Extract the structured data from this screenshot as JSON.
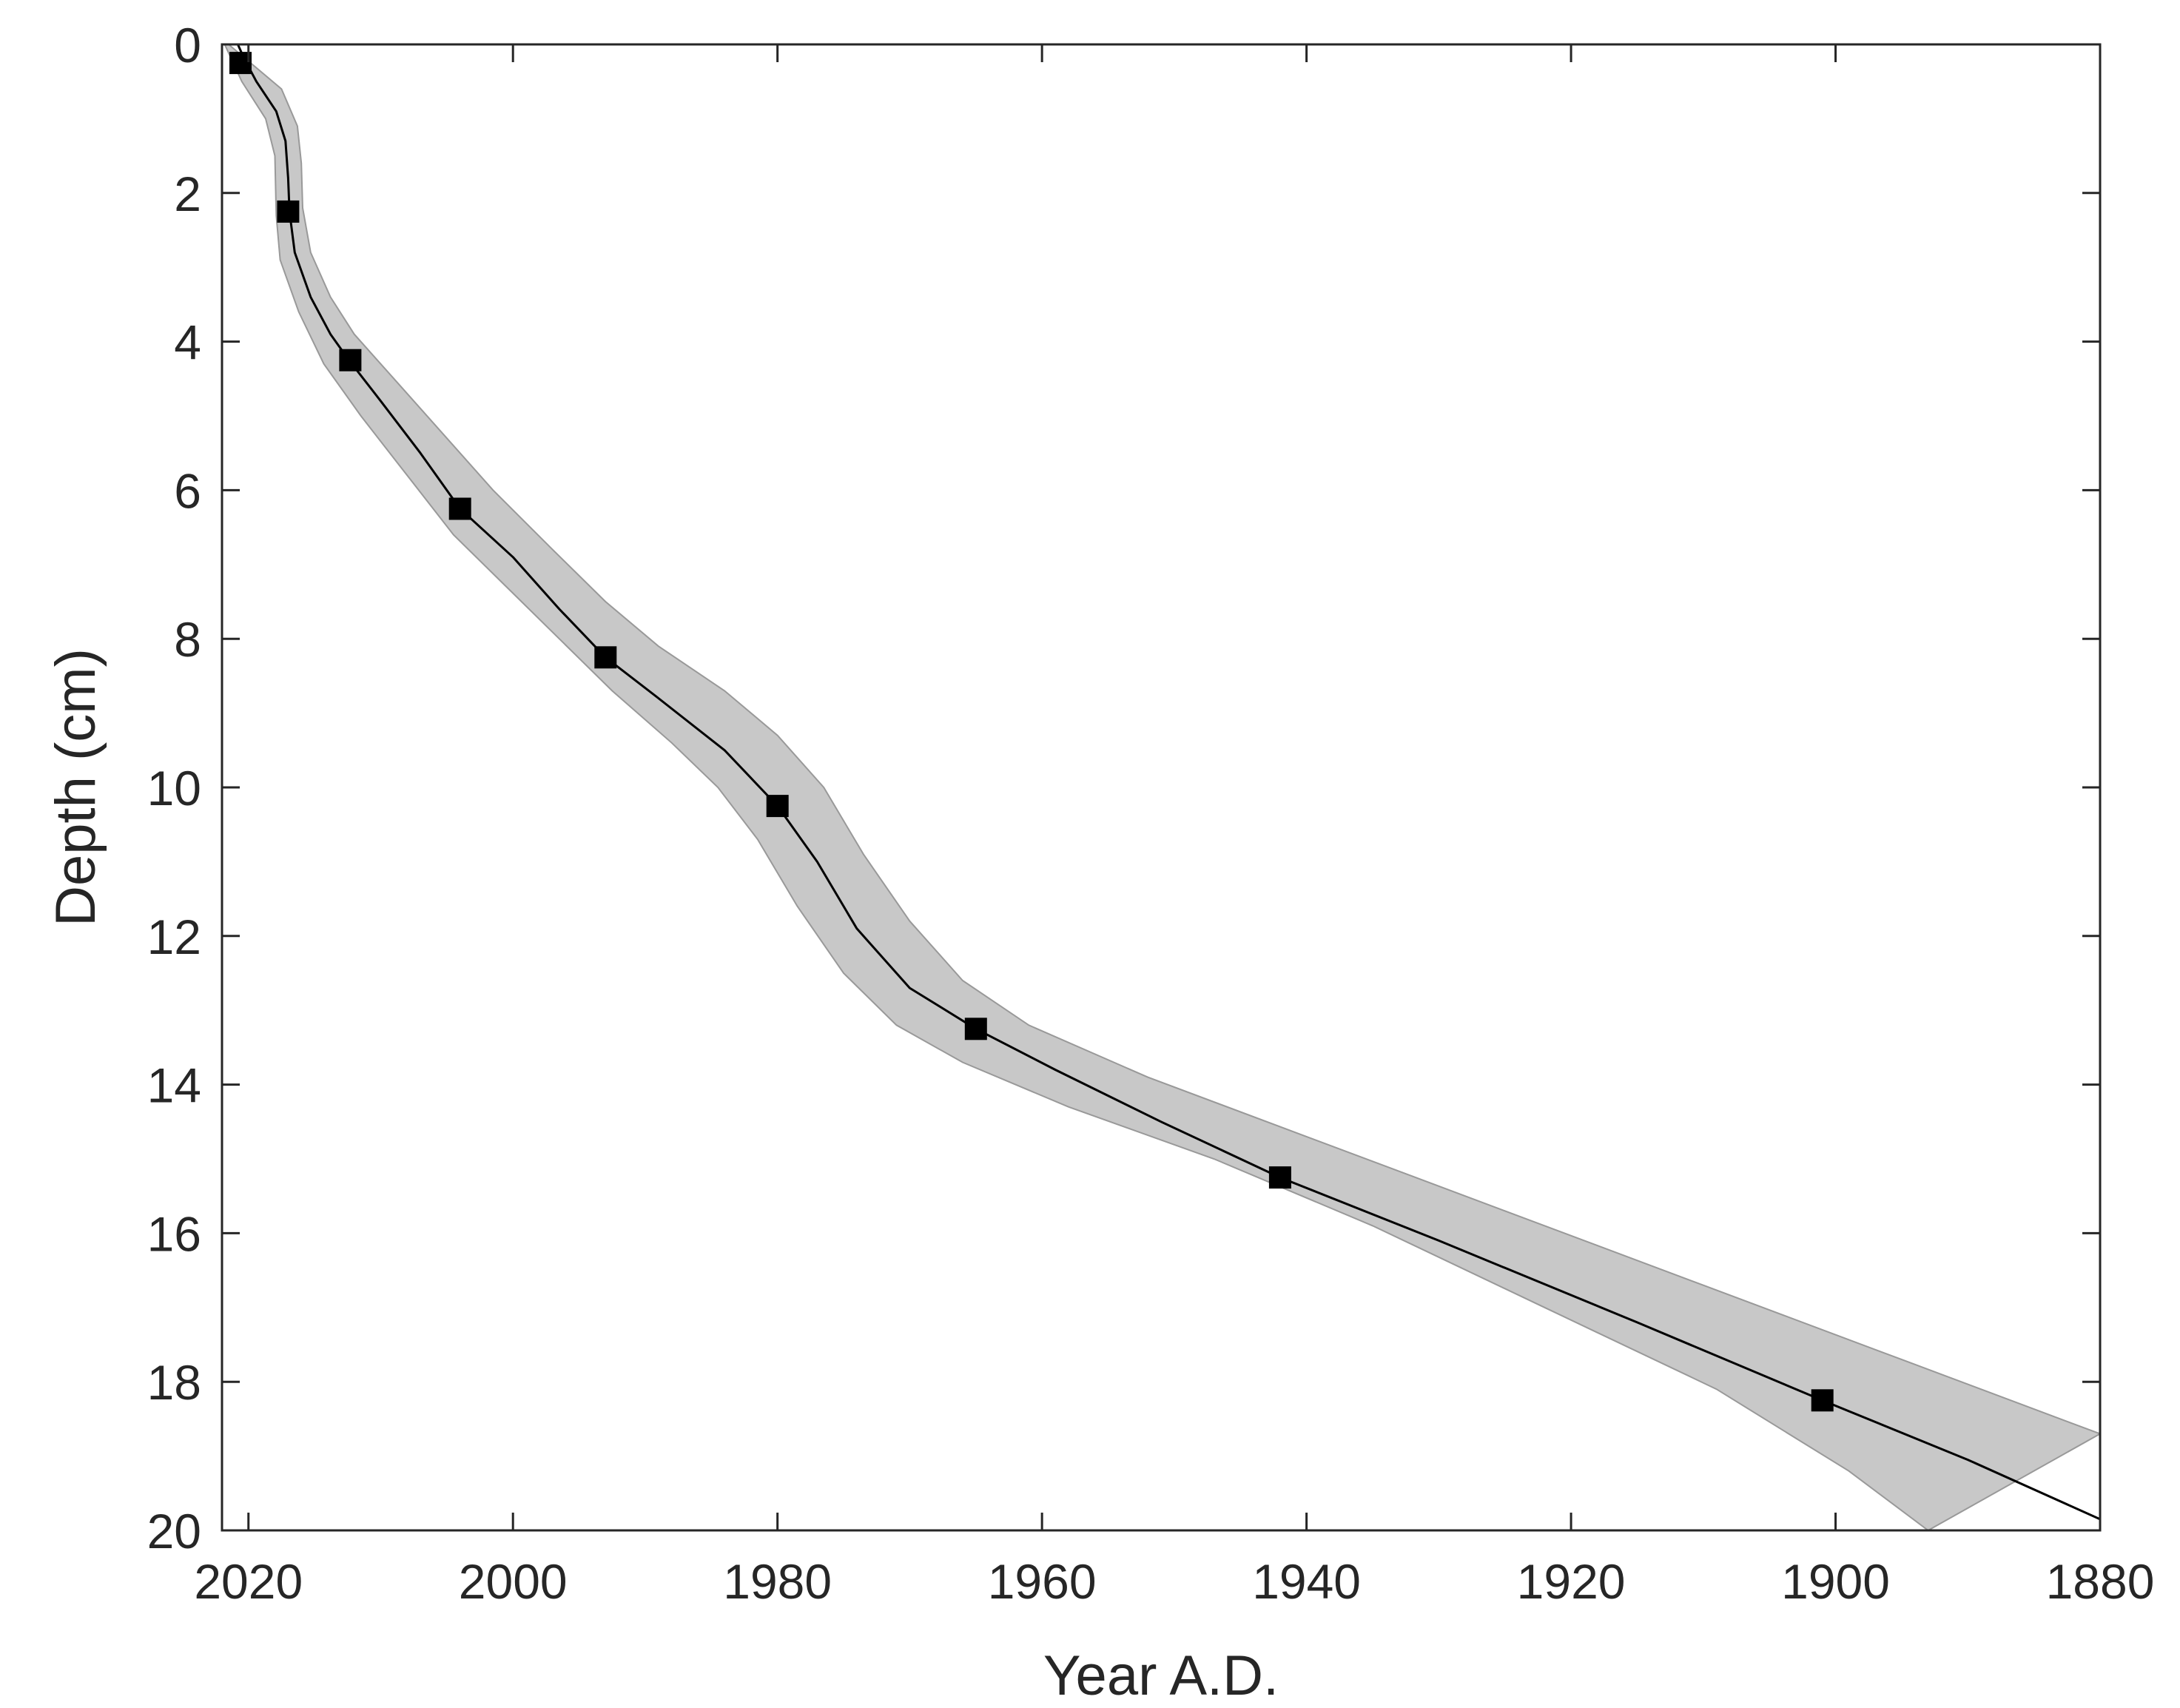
{
  "chart_data": {
    "type": "line",
    "title": "",
    "xlabel": "Year A.D.",
    "ylabel": "Depth (cm)",
    "xlim": [
      2022,
      1880
    ],
    "ylim": [
      0,
      20
    ],
    "x_reversed": true,
    "y_reversed": true,
    "grid": false,
    "x_ticks": [
      2020,
      2000,
      1980,
      1960,
      1940,
      1920,
      1900,
      1880
    ],
    "x_tick_labels": [
      "2020",
      "2000",
      "1980",
      "1960",
      "1940",
      "1920",
      "1900",
      "1880"
    ],
    "y_ticks": [
      0,
      2,
      4,
      6,
      8,
      10,
      12,
      14,
      16,
      18,
      20
    ],
    "y_tick_labels": [
      "0",
      "2",
      "4",
      "6",
      "8",
      "10",
      "12",
      "14",
      "16",
      "18",
      "20"
    ],
    "series": [
      {
        "values": [
          {
            "x": 2020.8,
            "y": 0.0
          },
          {
            "x": 2020.3,
            "y": 0.2
          },
          {
            "x": 2019.4,
            "y": 0.5
          },
          {
            "x": 2017.9,
            "y": 0.9
          },
          {
            "x": 2017.2,
            "y": 1.3
          },
          {
            "x": 2017.0,
            "y": 1.8
          },
          {
            "x": 2016.9,
            "y": 2.25
          },
          {
            "x": 2016.5,
            "y": 2.8
          },
          {
            "x": 2015.3,
            "y": 3.4
          },
          {
            "x": 2013.8,
            "y": 3.9
          },
          {
            "x": 2012.4,
            "y": 4.25
          },
          {
            "x": 2010.0,
            "y": 4.8
          },
          {
            "x": 2007.0,
            "y": 5.5
          },
          {
            "x": 2004.0,
            "y": 6.25
          },
          {
            "x": 2000.0,
            "y": 6.9
          },
          {
            "x": 1996.5,
            "y": 7.6
          },
          {
            "x": 1993.0,
            "y": 8.25
          },
          {
            "x": 1989.0,
            "y": 8.8
          },
          {
            "x": 1984.0,
            "y": 9.5
          },
          {
            "x": 1980.0,
            "y": 10.25
          },
          {
            "x": 1977.0,
            "y": 11.0
          },
          {
            "x": 1974.0,
            "y": 11.9
          },
          {
            "x": 1970.0,
            "y": 12.7
          },
          {
            "x": 1965.0,
            "y": 13.25
          },
          {
            "x": 1959.0,
            "y": 13.8
          },
          {
            "x": 1951.0,
            "y": 14.5
          },
          {
            "x": 1942.0,
            "y": 15.25
          },
          {
            "x": 1930.0,
            "y": 16.1
          },
          {
            "x": 1915.0,
            "y": 17.2
          },
          {
            "x": 1901.0,
            "y": 18.25
          },
          {
            "x": 1890.0,
            "y": 19.05
          },
          {
            "x": 1880.0,
            "y": 19.85
          }
        ]
      },
      {
        "markers": [
          {
            "x": 2020.6,
            "y": 0.25
          },
          {
            "x": 2017.0,
            "y": 2.25
          },
          {
            "x": 2012.3,
            "y": 4.25
          },
          {
            "x": 2004.0,
            "y": 6.25
          },
          {
            "x": 1993.0,
            "y": 8.25
          },
          {
            "x": 1980.0,
            "y": 10.25
          },
          {
            "x": 1965.0,
            "y": 13.25
          },
          {
            "x": 1942.0,
            "y": 15.25
          },
          {
            "x": 1901.0,
            "y": 18.25
          }
        ]
      }
    ],
    "uncertainty_band": {
      "upper_edge": [
        {
          "x": 2021.5,
          "y": 0.0
        },
        {
          "x": 2019.5,
          "y": 0.3
        },
        {
          "x": 2017.5,
          "y": 0.6
        },
        {
          "x": 2016.3,
          "y": 1.1
        },
        {
          "x": 2016.0,
          "y": 1.6
        },
        {
          "x": 2015.9,
          "y": 2.2
        },
        {
          "x": 2015.3,
          "y": 2.8
        },
        {
          "x": 2013.8,
          "y": 3.4
        },
        {
          "x": 2012.0,
          "y": 3.9
        },
        {
          "x": 2008.5,
          "y": 4.6
        },
        {
          "x": 2005.0,
          "y": 5.3
        },
        {
          "x": 2001.5,
          "y": 6.0
        },
        {
          "x": 1997.0,
          "y": 6.8
        },
        {
          "x": 1993.0,
          "y": 7.5
        },
        {
          "x": 1989.0,
          "y": 8.1
        },
        {
          "x": 1984.0,
          "y": 8.7
        },
        {
          "x": 1980.0,
          "y": 9.3
        },
        {
          "x": 1976.5,
          "y": 10.0
        },
        {
          "x": 1973.5,
          "y": 10.9
        },
        {
          "x": 1970.0,
          "y": 11.8
        },
        {
          "x": 1966.0,
          "y": 12.6
        },
        {
          "x": 1961.0,
          "y": 13.2
        },
        {
          "x": 1952.0,
          "y": 13.9
        },
        {
          "x": 1940.0,
          "y": 14.7
        },
        {
          "x": 1925.0,
          "y": 15.7
        },
        {
          "x": 1910.0,
          "y": 16.7
        },
        {
          "x": 1895.0,
          "y": 17.7
        },
        {
          "x": 1880.0,
          "y": 18.7
        }
      ],
      "lower_edge": [
        {
          "x": 2021.8,
          "y": 0.0
        },
        {
          "x": 2020.5,
          "y": 0.5
        },
        {
          "x": 2018.7,
          "y": 1.0
        },
        {
          "x": 2018.0,
          "y": 1.5
        },
        {
          "x": 2017.9,
          "y": 2.3
        },
        {
          "x": 2017.6,
          "y": 2.9
        },
        {
          "x": 2016.2,
          "y": 3.6
        },
        {
          "x": 2014.3,
          "y": 4.3
        },
        {
          "x": 2011.5,
          "y": 5.0
        },
        {
          "x": 2008.0,
          "y": 5.8
        },
        {
          "x": 2004.5,
          "y": 6.6
        },
        {
          "x": 2000.5,
          "y": 7.3
        },
        {
          "x": 1996.5,
          "y": 8.0
        },
        {
          "x": 1992.5,
          "y": 8.7
        },
        {
          "x": 1988.0,
          "y": 9.4
        },
        {
          "x": 1984.5,
          "y": 10.0
        },
        {
          "x": 1981.5,
          "y": 10.7
        },
        {
          "x": 1978.5,
          "y": 11.6
        },
        {
          "x": 1975.0,
          "y": 12.5
        },
        {
          "x": 1971.0,
          "y": 13.2
        },
        {
          "x": 1966.0,
          "y": 13.7
        },
        {
          "x": 1958.0,
          "y": 14.3
        },
        {
          "x": 1947.0,
          "y": 15.0
        },
        {
          "x": 1935.0,
          "y": 15.9
        },
        {
          "x": 1922.0,
          "y": 17.0
        },
        {
          "x": 1909.0,
          "y": 18.1
        },
        {
          "x": 1899.0,
          "y": 19.2
        },
        {
          "x": 1893.0,
          "y": 20.0
        }
      ]
    },
    "colors": {
      "line": "#000000",
      "marker": "#000000",
      "band_fill": "#c8c8c8",
      "band_edge": "#999999",
      "axis": "#262626"
    }
  }
}
